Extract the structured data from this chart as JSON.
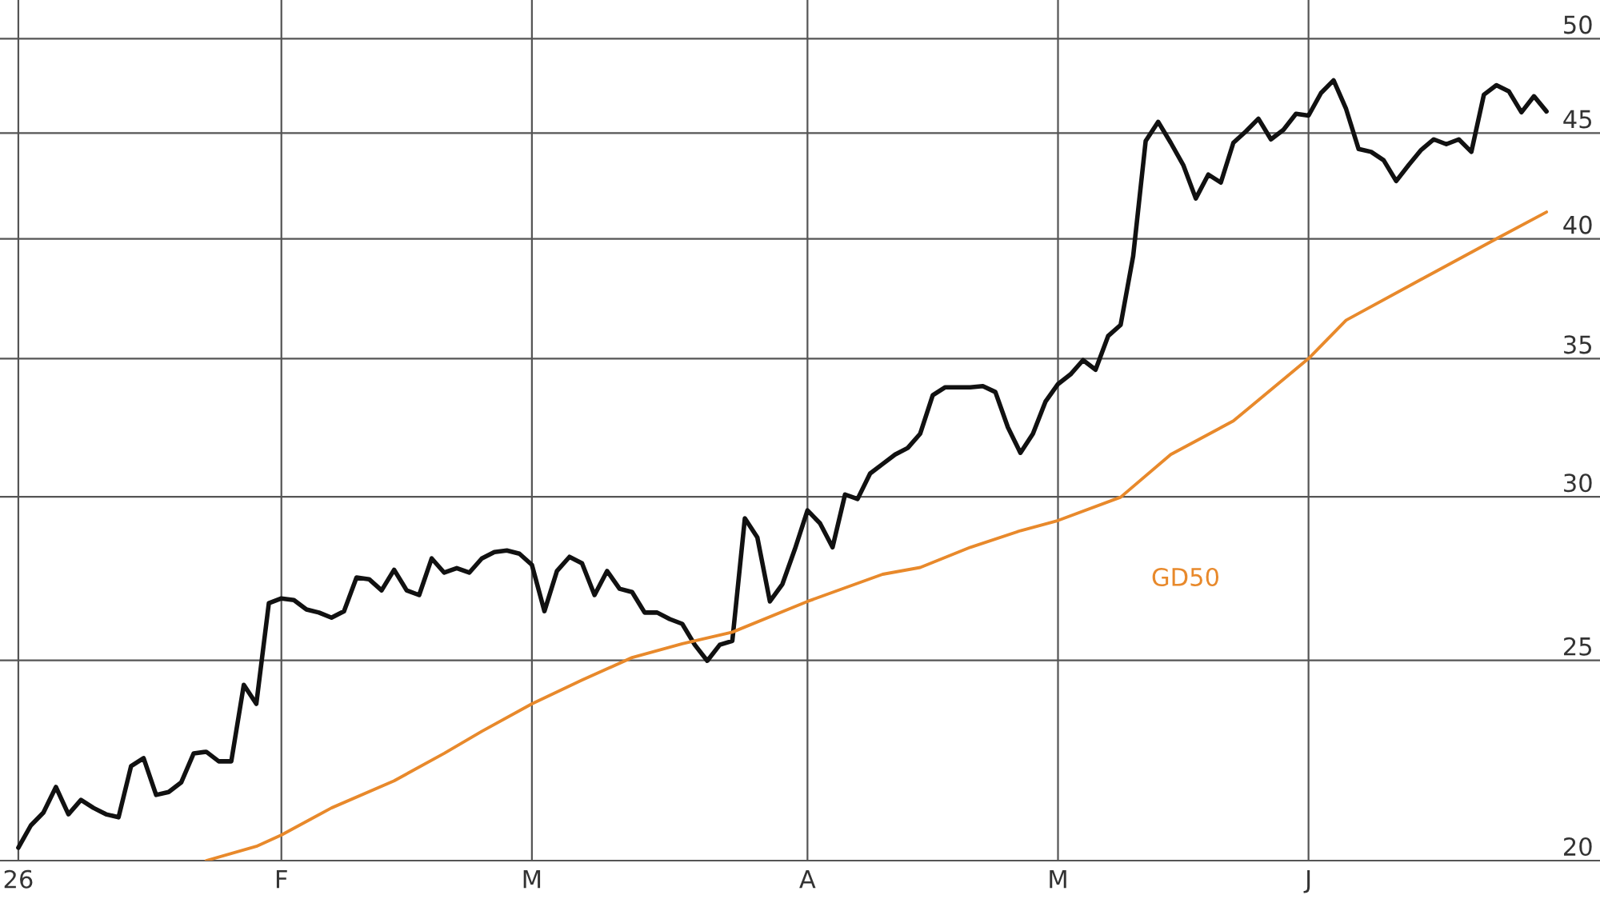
{
  "chart_data": {
    "type": "line",
    "categories": [
      "26",
      null,
      null,
      null,
      null,
      null,
      null,
      null,
      null,
      null,
      null,
      null,
      null,
      null,
      null,
      null,
      null,
      null,
      null,
      null,
      null,
      "F",
      null,
      null,
      null,
      null,
      null,
      null,
      null,
      null,
      null,
      null,
      null,
      null,
      null,
      null,
      null,
      null,
      null,
      null,
      null,
      "M",
      null,
      null,
      null,
      null,
      null,
      null,
      null,
      null,
      null,
      null,
      null,
      null,
      null,
      null,
      null,
      null,
      null,
      null,
      null,
      null,
      null,
      "A",
      null,
      null,
      null,
      null,
      null,
      null,
      null,
      null,
      null,
      null,
      null,
      null,
      null,
      null,
      null,
      null,
      null,
      null,
      null,
      "M",
      null,
      null,
      null,
      null,
      null,
      null,
      null,
      null,
      null,
      null,
      null,
      null,
      null,
      null,
      null,
      null,
      null,
      null,
      null,
      "J",
      null,
      null,
      null,
      null,
      null,
      null,
      null,
      null,
      null,
      null,
      null,
      null,
      null,
      null,
      null,
      null,
      null,
      null,
      null
    ],
    "series": [
      {
        "color": "#111111",
        "values": [
          20.29,
          20.8,
          21.1,
          21.71,
          21.06,
          21.4,
          21.21,
          21.06,
          20.99,
          22.22,
          22.42,
          21.52,
          21.59,
          21.82,
          22.54,
          22.58,
          22.34,
          22.34,
          24.33,
          23.82,
          26.65,
          26.79,
          26.74,
          26.46,
          26.37,
          26.22,
          26.41,
          27.42,
          27.37,
          27.03,
          27.66,
          27.03,
          26.89,
          28.01,
          27.57,
          27.71,
          27.57,
          28.01,
          28.21,
          28.26,
          28.16,
          27.81,
          26.41,
          27.62,
          28.06,
          27.86,
          26.89,
          27.62,
          27.08,
          26.98,
          26.37,
          26.37,
          26.18,
          26.04,
          25.44,
          24.99,
          25.44,
          25.55,
          29.29,
          28.67,
          26.7,
          27.22,
          28.31,
          29.55,
          29.13,
          28.36,
          30.08,
          29.93,
          30.79,
          31.12,
          31.45,
          31.68,
          32.19,
          33.6,
          33.9,
          33.9,
          33.9,
          33.94,
          33.72,
          32.42,
          31.51,
          32.19,
          33.36,
          34.02,
          34.39,
          34.94,
          34.57,
          35.89,
          36.34,
          39.23,
          44.61,
          45.57,
          44.52,
          43.43,
          41.84,
          42.97,
          42.59,
          44.52,
          45.09,
          45.73,
          44.69,
          45.17,
          45.98,
          45.89,
          47.06,
          47.73,
          46.23,
          44.21,
          44.07,
          43.66,
          42.66,
          43.43,
          44.17,
          44.69,
          44.45,
          44.69,
          44.07,
          46.97,
          47.47,
          47.14,
          46.06,
          46.89,
          46.1
        ]
      },
      {
        "name": "GD50",
        "color": "#e8892b",
        "values": [
          null,
          null,
          null,
          null,
          null,
          null,
          null,
          null,
          null,
          null,
          null,
          null,
          null,
          null,
          null,
          20.0,
          null,
          null,
          null,
          20.32,
          null,
          20.58,
          null,
          null,
          null,
          21.21,
          null,
          null,
          null,
          null,
          21.86,
          null,
          null,
          null,
          22.54,
          null,
          null,
          23.1,
          null,
          null,
          null,
          23.82,
          null,
          null,
          null,
          24.46,
          null,
          null,
          null,
          25.08,
          null,
          null,
          null,
          25.47,
          null,
          null,
          null,
          25.8,
          null,
          null,
          null,
          null,
          null,
          26.7,
          null,
          null,
          null,
          null,
          null,
          27.52,
          null,
          null,
          27.73,
          null,
          null,
          null,
          28.36,
          null,
          null,
          null,
          28.89,
          null,
          null,
          29.22,
          null,
          null,
          null,
          null,
          29.99,
          null,
          null,
          null,
          31.45,
          null,
          null,
          null,
          null,
          32.65,
          null,
          null,
          null,
          null,
          null,
          35.0,
          null,
          null,
          36.53,
          null,
          null,
          null,
          null,
          null,
          38.23,
          null,
          null,
          null,
          null,
          null,
          40.0,
          null,
          null,
          null,
          41.21
        ]
      }
    ],
    "log": "y",
    "ylim": [
      20,
      52.2
    ],
    "yticks": [
      20,
      25,
      30,
      35,
      40,
      45,
      50
    ],
    "grid": true
  }
}
